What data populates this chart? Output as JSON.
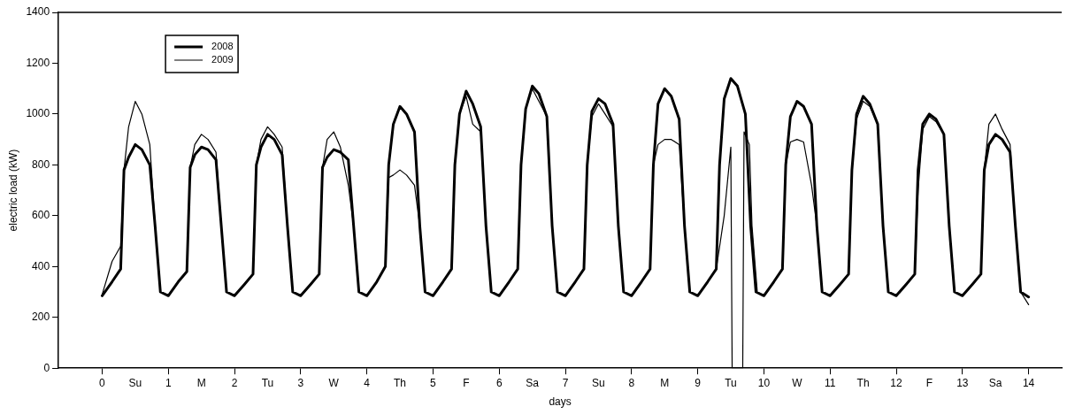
{
  "chart_data": {
    "type": "line",
    "xlabel": "days",
    "ylabel": "electric load (kW)",
    "legend": "top left",
    "marker": "none",
    "line_style": "solid",
    "grid": false,
    "xlim": [
      -0.66,
      14.5
    ],
    "ylim": [
      0,
      1400
    ],
    "yticks": [
      0,
      200,
      400,
      600,
      800,
      1000,
      1200,
      1400
    ],
    "xticks": [
      0,
      {
        "value": 0.5,
        "label": "Su"
      },
      1,
      {
        "value": 1.5,
        "label": "M"
      },
      2,
      {
        "value": 2.5,
        "label": "Tu"
      },
      3,
      {
        "value": 3.5,
        "label": "W"
      },
      4,
      {
        "value": 4.5,
        "label": "Th"
      },
      5,
      {
        "value": 5.5,
        "label": "F"
      },
      6,
      {
        "value": 6.5,
        "label": "Sa"
      },
      7,
      {
        "value": 7.5,
        "label": "Su"
      },
      8,
      {
        "value": 8.5,
        "label": "M"
      },
      9,
      {
        "value": 9.5,
        "label": "Tu"
      },
      10,
      {
        "value": 10.5,
        "label": "W"
      },
      11,
      {
        "value": 11.5,
        "label": "Th"
      },
      12,
      {
        "value": 12.5,
        "label": "F"
      },
      13,
      {
        "value": 13.5,
        "label": "Sa"
      },
      14
    ],
    "series": [
      {
        "name": "2008",
        "color": "#000000",
        "x": [
          0,
          0.15,
          0.28,
          0.33,
          0.4,
          0.5,
          0.6,
          0.72,
          0.8,
          0.88,
          1,
          1.15,
          1.28,
          1.33,
          1.4,
          1.5,
          1.6,
          1.72,
          1.8,
          1.88,
          2,
          2.15,
          2.28,
          2.33,
          2.4,
          2.5,
          2.6,
          2.72,
          2.8,
          2.88,
          3,
          3.15,
          3.28,
          3.33,
          3.4,
          3.5,
          3.6,
          3.72,
          3.8,
          3.88,
          4,
          4.15,
          4.28,
          4.33,
          4.4,
          4.5,
          4.6,
          4.72,
          4.8,
          4.88,
          5,
          5.15,
          5.28,
          5.33,
          5.4,
          5.5,
          5.6,
          5.72,
          5.8,
          5.88,
          6,
          6.15,
          6.28,
          6.33,
          6.4,
          6.5,
          6.6,
          6.72,
          6.8,
          6.88,
          7,
          7.15,
          7.28,
          7.33,
          7.4,
          7.5,
          7.6,
          7.72,
          7.8,
          7.88,
          8,
          8.15,
          8.28,
          8.33,
          8.4,
          8.5,
          8.6,
          8.72,
          8.8,
          8.88,
          9,
          9.15,
          9.28,
          9.33,
          9.4,
          9.5,
          9.6,
          9.72,
          9.8,
          9.88,
          10,
          10.15,
          10.28,
          10.33,
          10.4,
          10.5,
          10.6,
          10.72,
          10.8,
          10.88,
          11,
          11.15,
          11.28,
          11.33,
          11.4,
          11.5,
          11.6,
          11.72,
          11.8,
          11.88,
          12,
          12.15,
          12.28,
          12.33,
          12.4,
          12.5,
          12.6,
          12.72,
          12.8,
          12.88,
          13,
          13.15,
          13.28,
          13.33,
          13.4,
          13.5,
          13.6,
          13.72,
          13.8,
          13.88,
          14
        ],
        "values": [
          285,
          340,
          390,
          780,
          830,
          880,
          860,
          800,
          560,
          300,
          285,
          340,
          380,
          790,
          840,
          870,
          860,
          820,
          560,
          300,
          285,
          330,
          370,
          800,
          870,
          920,
          900,
          840,
          560,
          300,
          285,
          330,
          370,
          790,
          830,
          860,
          850,
          820,
          560,
          300,
          285,
          340,
          400,
          800,
          960,
          1030,
          1000,
          930,
          560,
          300,
          285,
          340,
          390,
          800,
          1000,
          1090,
          1040,
          950,
          560,
          300,
          285,
          340,
          390,
          800,
          1020,
          1110,
          1080,
          990,
          560,
          300,
          285,
          340,
          390,
          800,
          1010,
          1060,
          1040,
          960,
          560,
          300,
          285,
          340,
          390,
          800,
          1040,
          1100,
          1070,
          980,
          560,
          300,
          285,
          340,
          390,
          800,
          1060,
          1140,
          1110,
          1000,
          560,
          300,
          285,
          340,
          390,
          800,
          990,
          1050,
          1030,
          960,
          560,
          300,
          285,
          330,
          370,
          780,
          1000,
          1070,
          1040,
          960,
          560,
          300,
          285,
          330,
          370,
          780,
          960,
          1000,
          980,
          920,
          560,
          300,
          285,
          330,
          370,
          780,
          880,
          920,
          900,
          850,
          560,
          300,
          280
        ]
      },
      {
        "name": "2009",
        "color": "#000000",
        "x": [
          0,
          0.15,
          0.28,
          0.33,
          0.4,
          0.5,
          0.6,
          0.72,
          0.8,
          0.88,
          1,
          1.15,
          1.28,
          1.33,
          1.4,
          1.5,
          1.6,
          1.72,
          1.8,
          1.88,
          2,
          2.15,
          2.28,
          2.33,
          2.4,
          2.5,
          2.6,
          2.72,
          2.8,
          2.88,
          3,
          3.15,
          3.28,
          3.33,
          3.4,
          3.5,
          3.6,
          3.72,
          3.8,
          3.88,
          4,
          4.15,
          4.28,
          4.33,
          4.4,
          4.5,
          4.6,
          4.72,
          4.8,
          4.88,
          5,
          5.15,
          5.28,
          5.33,
          5.4,
          5.5,
          5.6,
          5.72,
          5.8,
          5.88,
          6,
          6.15,
          6.28,
          6.33,
          6.4,
          6.5,
          6.6,
          6.72,
          6.8,
          6.88,
          7,
          7.15,
          7.28,
          7.33,
          7.4,
          7.5,
          7.6,
          7.72,
          7.8,
          7.88,
          8,
          8.15,
          8.28,
          8.33,
          8.4,
          8.5,
          8.6,
          8.72,
          8.8,
          8.88,
          9,
          9.15,
          9.28,
          9.4,
          9.5,
          9.52,
          9.68,
          9.7,
          9.78,
          9.82,
          9.9,
          10,
          10.15,
          10.28,
          10.33,
          10.4,
          10.5,
          10.6,
          10.72,
          10.8,
          10.88,
          11,
          11.15,
          11.28,
          11.33,
          11.4,
          11.5,
          11.6,
          11.72,
          11.8,
          11.88,
          12,
          12.15,
          12.28,
          12.33,
          12.4,
          12.5,
          12.6,
          12.72,
          12.8,
          12.88,
          13,
          13.15,
          13.28,
          13.33,
          13.4,
          13.5,
          13.6,
          13.72,
          13.8,
          13.88,
          14
        ],
        "values": [
          290,
          420,
          480,
          780,
          950,
          1050,
          1000,
          880,
          560,
          300,
          285,
          340,
          380,
          790,
          880,
          920,
          900,
          850,
          560,
          300,
          285,
          330,
          370,
          800,
          900,
          950,
          920,
          870,
          560,
          300,
          285,
          330,
          370,
          790,
          900,
          930,
          870,
          720,
          560,
          300,
          285,
          340,
          400,
          750,
          760,
          780,
          760,
          720,
          560,
          300,
          285,
          340,
          390,
          800,
          1000,
          1070,
          960,
          930,
          560,
          300,
          285,
          340,
          390,
          800,
          1020,
          1100,
          1050,
          990,
          560,
          300,
          285,
          340,
          390,
          800,
          990,
          1040,
          1000,
          950,
          560,
          300,
          285,
          340,
          390,
          800,
          880,
          900,
          900,
          880,
          560,
          300,
          285,
          340,
          390,
          600,
          870,
          0,
          0,
          930,
          880,
          560,
          300,
          285,
          340,
          390,
          800,
          890,
          900,
          890,
          720,
          560,
          300,
          285,
          330,
          370,
          780,
          980,
          1050,
          1030,
          960,
          560,
          300,
          285,
          330,
          370,
          700,
          940,
          990,
          970,
          920,
          560,
          300,
          285,
          330,
          370,
          780,
          960,
          1000,
          940,
          880,
          560,
          300,
          250
        ]
      }
    ]
  }
}
